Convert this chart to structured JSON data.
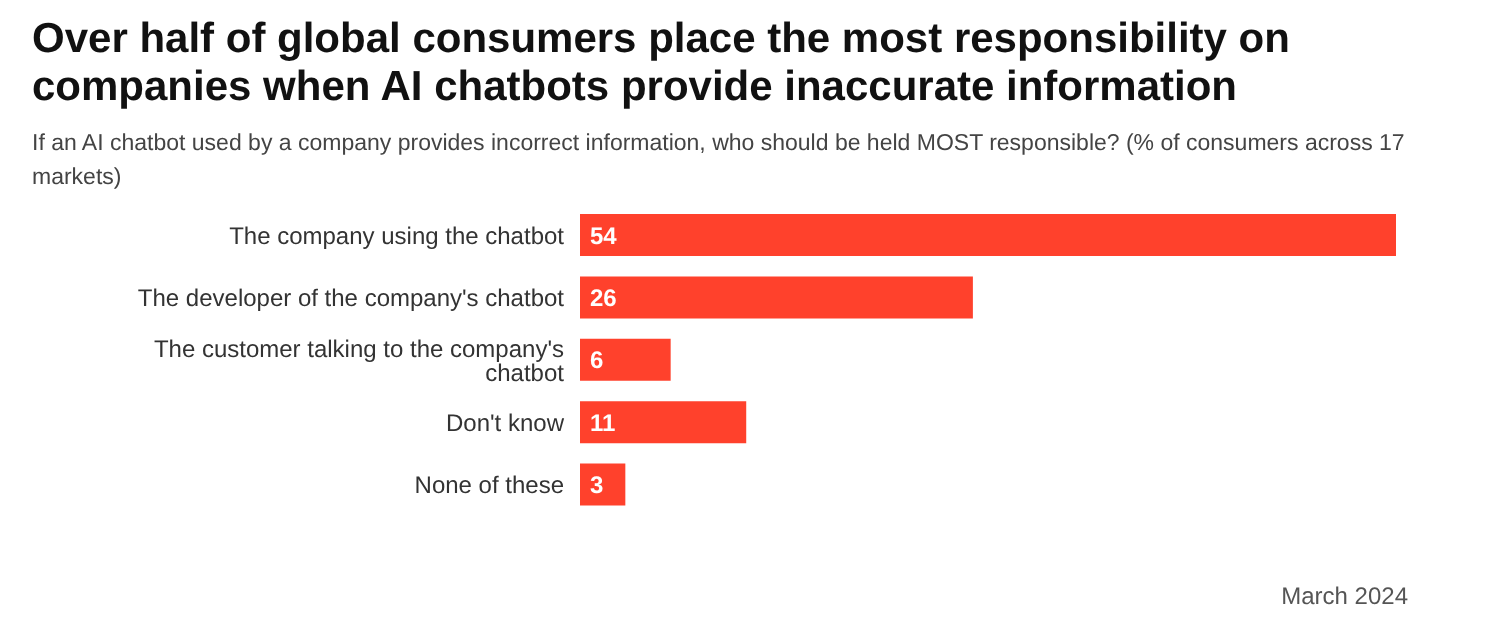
{
  "chart_data": {
    "type": "bar",
    "orientation": "horizontal",
    "title": "Over half of global consumers place the most responsibility on companies when AI chatbots provide inaccurate information",
    "subtitle": "If an AI chatbot used by a company provides incorrect information, who should be held MOST responsible? (% of consumers across 17 markets)",
    "categories": [
      "The company using the chatbot",
      "The developer of the company's chatbot",
      "The customer talking to the company's chatbot",
      "Don't know",
      "None of these"
    ],
    "values": [
      54,
      26,
      6,
      11,
      3
    ],
    "color": "#ff412c",
    "data_labels": true,
    "grid": false,
    "legend": false,
    "annotations": [
      "March 2024"
    ]
  }
}
